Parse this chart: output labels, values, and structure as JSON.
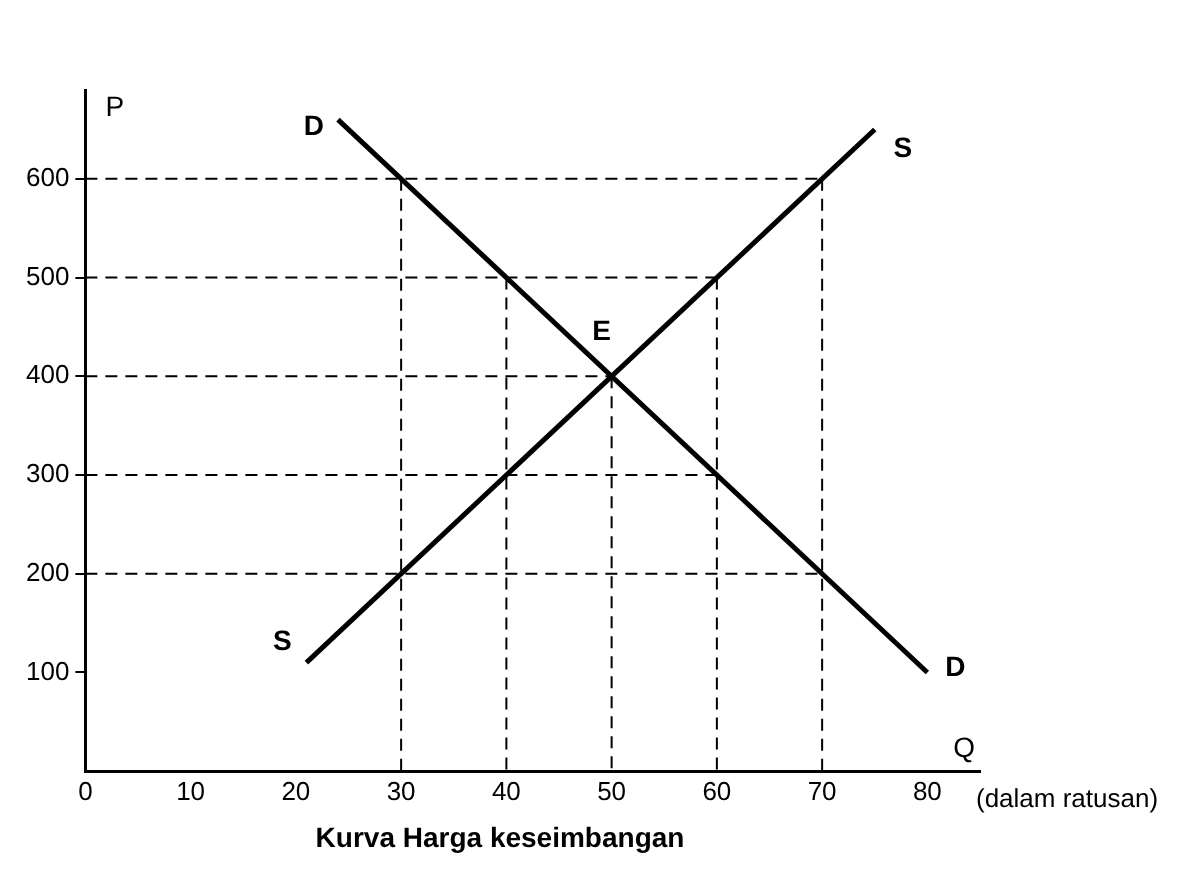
{
  "chart_data": {
    "type": "line",
    "title": "Kurva Harga keseimbangan",
    "xlabel": "Q",
    "ylabel": "P",
    "xlim": [
      0,
      85
    ],
    "ylim": [
      0,
      690
    ],
    "xticks": [
      0,
      10,
      20,
      30,
      40,
      50,
      60,
      70,
      80
    ],
    "yticks": [
      100,
      200,
      300,
      400,
      500,
      600
    ],
    "grid": false,
    "legend": false,
    "marker": "none",
    "series": [
      {
        "name": "D",
        "color": "#000000",
        "x": [
          24,
          80
        ],
        "values": [
          660,
          100
        ],
        "line_style": "solid"
      },
      {
        "name": "S",
        "color": "#000000",
        "x": [
          21,
          75
        ],
        "values": [
          110,
          650
        ],
        "line_style": "solid"
      },
      {
        "color": "#000000",
        "x": [
          0,
          70
        ],
        "values": [
          600,
          600
        ],
        "line_style": "dashed"
      },
      {
        "color": "#000000",
        "x": [
          0,
          60
        ],
        "values": [
          500,
          500
        ],
        "line_style": "dashed"
      },
      {
        "color": "#000000",
        "x": [
          0,
          50
        ],
        "values": [
          400,
          400
        ],
        "line_style": "dashed"
      },
      {
        "color": "#000000",
        "x": [
          0,
          60
        ],
        "values": [
          300,
          300
        ],
        "line_style": "dashed"
      },
      {
        "color": "#000000",
        "x": [
          0,
          70
        ],
        "values": [
          200,
          200
        ],
        "line_style": "dashed"
      },
      {
        "color": "#000000",
        "x": [
          30,
          30
        ],
        "values": [
          600,
          0
        ],
        "line_style": "dashed"
      },
      {
        "color": "#000000",
        "x": [
          40,
          40
        ],
        "values": [
          500,
          0
        ],
        "line_style": "dashed"
      },
      {
        "color": "#000000",
        "x": [
          50,
          50
        ],
        "values": [
          400,
          0
        ],
        "line_style": "dashed"
      },
      {
        "color": "#000000",
        "x": [
          60,
          60
        ],
        "values": [
          500,
          0
        ],
        "line_style": "dashed"
      },
      {
        "color": "#000000",
        "x": [
          70,
          70
        ],
        "values": [
          600,
          0
        ],
        "line_style": "dashed"
      }
    ],
    "annotations": [
      "E",
      "(dalam ratusan)"
    ]
  }
}
